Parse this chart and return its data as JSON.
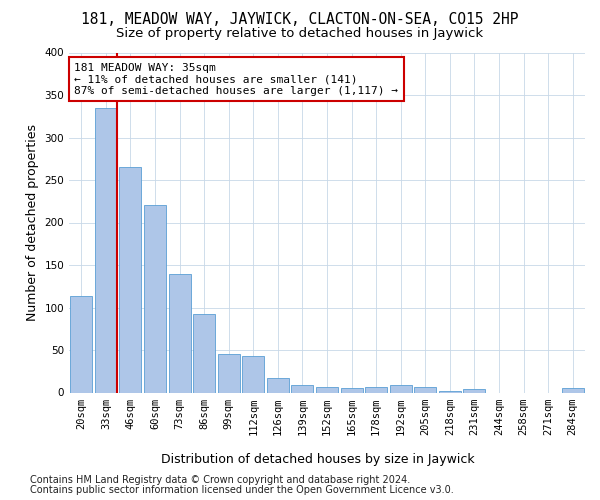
{
  "title": "181, MEADOW WAY, JAYWICK, CLACTON-ON-SEA, CO15 2HP",
  "subtitle": "Size of property relative to detached houses in Jaywick",
  "xlabel": "Distribution of detached houses by size in Jaywick",
  "ylabel": "Number of detached properties",
  "footer_line1": "Contains HM Land Registry data © Crown copyright and database right 2024.",
  "footer_line2": "Contains public sector information licensed under the Open Government Licence v3.0.",
  "categories": [
    "20sqm",
    "33sqm",
    "46sqm",
    "60sqm",
    "73sqm",
    "86sqm",
    "99sqm",
    "112sqm",
    "126sqm",
    "139sqm",
    "152sqm",
    "165sqm",
    "178sqm",
    "192sqm",
    "205sqm",
    "218sqm",
    "231sqm",
    "244sqm",
    "258sqm",
    "271sqm",
    "284sqm"
  ],
  "values": [
    113,
    335,
    265,
    221,
    140,
    92,
    45,
    43,
    17,
    9,
    7,
    5,
    6,
    9,
    6,
    2,
    4,
    0,
    0,
    0,
    5
  ],
  "bar_color": "#aec6e8",
  "bar_edge_color": "#5a9fd4",
  "vline_x_index": 1,
  "vline_color": "#cc0000",
  "annotation_text": "181 MEADOW WAY: 35sqm\n← 11% of detached houses are smaller (141)\n87% of semi-detached houses are larger (1,117) →",
  "annotation_box_color": "#ffffff",
  "annotation_box_edge_color": "#cc0000",
  "ylim": [
    0,
    400
  ],
  "yticks": [
    0,
    50,
    100,
    150,
    200,
    250,
    300,
    350,
    400
  ],
  "background_color": "#ffffff",
  "grid_color": "#c8d8e8",
  "title_fontsize": 10.5,
  "subtitle_fontsize": 9.5,
  "axis_label_fontsize": 9,
  "tick_fontsize": 7.5,
  "annotation_fontsize": 8,
  "footer_fontsize": 7
}
